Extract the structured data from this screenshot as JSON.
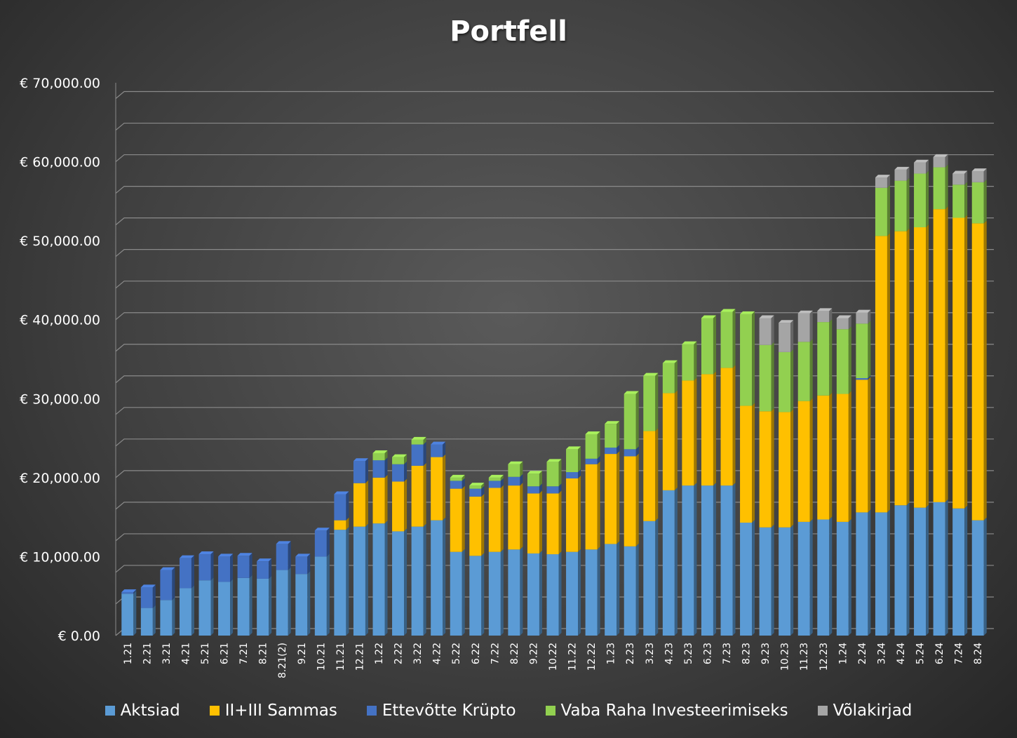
{
  "chart_data": {
    "type": "bar",
    "stacked": true,
    "title": "Portfell",
    "xlabel": "",
    "ylabel": "",
    "ylim": [
      0,
      70000
    ],
    "yticks": [
      "€ 0.00",
      "€ 10,000.00",
      "€ 20,000.00",
      "€ 30,000.00",
      "€ 40,000.00",
      "€ 50,000.00",
      "€ 60,000.00",
      "€ 70,000.00"
    ],
    "grid": true,
    "legend_position": "bottom",
    "categories": [
      "1.21",
      "2.21",
      "3.21",
      "4.21",
      "5.21",
      "6.21",
      "7.21",
      "8.21",
      "8.21(2)",
      "9.21",
      "10.21",
      "11.21",
      "12.21",
      "1.22",
      "2.22",
      "3.22",
      "4.22",
      "5.22",
      "6.22",
      "7.22",
      "8.22",
      "9.22",
      "10.22",
      "11.22",
      "12.22",
      "1.23",
      "2.23",
      "3.23",
      "4.23",
      "5.23",
      "6.23",
      "7.23",
      "8.23",
      "9.23",
      "10.23",
      "11.23",
      "12.23",
      "1.24",
      "2.24",
      "3.24",
      "4.24",
      "5.24",
      "6.24",
      "7.24",
      "8.24"
    ],
    "series": [
      {
        "name": "Aktsiad",
        "color": "#5B9BD5",
        "values": [
          5300,
          3500,
          4500,
          6000,
          7000,
          6800,
          7300,
          7200,
          8300,
          7800,
          10000,
          13400,
          13800,
          14200,
          13200,
          13800,
          14600,
          10600,
          10100,
          10600,
          10900,
          10400,
          10300,
          10600,
          10900,
          11600,
          11300,
          14500,
          18400,
          19000,
          19000,
          19000,
          14300,
          13700,
          13700,
          14400,
          14700,
          14400,
          15600,
          15600,
          16500,
          16200,
          16900,
          16100,
          14600
        ]
      },
      {
        "name": "II+III Sammas",
        "color": "#FFC000",
        "values": [
          0,
          0,
          0,
          0,
          0,
          0,
          0,
          0,
          0,
          0,
          0,
          1200,
          5500,
          5800,
          6300,
          7700,
          8000,
          8000,
          7500,
          8100,
          8100,
          7600,
          7700,
          9300,
          10800,
          11400,
          11400,
          11400,
          12300,
          13300,
          14100,
          14900,
          14800,
          14700,
          14600,
          15300,
          15700,
          16200,
          16800,
          35000,
          34700,
          35500,
          37100,
          36800,
          37600
        ]
      },
      {
        "name": "Ettevõtte Krüpto",
        "color": "#4472C4",
        "values": [
          200,
          2600,
          3800,
          3800,
          3300,
          3200,
          2800,
          2200,
          3300,
          2200,
          3300,
          3300,
          2800,
          2200,
          2200,
          2700,
          1600,
          1000,
          1000,
          900,
          1100,
          900,
          900,
          800,
          700,
          800,
          900,
          0,
          0,
          0,
          0,
          0,
          0,
          0,
          0,
          0,
          0,
          0,
          200,
          0,
          0,
          0,
          0,
          0,
          0
        ]
      },
      {
        "name": "Vaba Raha Investeerimiseks",
        "color": "#92D050",
        "values": [
          0,
          0,
          0,
          0,
          0,
          0,
          0,
          0,
          0,
          0,
          0,
          0,
          0,
          900,
          900,
          600,
          0,
          400,
          400,
          400,
          1600,
          1600,
          3100,
          2900,
          3100,
          3000,
          7000,
          7000,
          3800,
          4600,
          7100,
          7100,
          11600,
          8400,
          7600,
          7500,
          9300,
          8200,
          6900,
          6100,
          6400,
          6800,
          5300,
          4200,
          5200
        ]
      },
      {
        "name": "Võlakirjad",
        "color": "#A5A5A5",
        "values": [
          0,
          0,
          0,
          0,
          0,
          0,
          0,
          0,
          0,
          0,
          0,
          0,
          0,
          0,
          0,
          0,
          0,
          0,
          0,
          0,
          0,
          0,
          0,
          0,
          0,
          0,
          0,
          0,
          0,
          0,
          0,
          0,
          0,
          3400,
          3700,
          3600,
          1400,
          1400,
          1400,
          1300,
          1400,
          1400,
          1300,
          1400,
          1400
        ]
      }
    ]
  }
}
